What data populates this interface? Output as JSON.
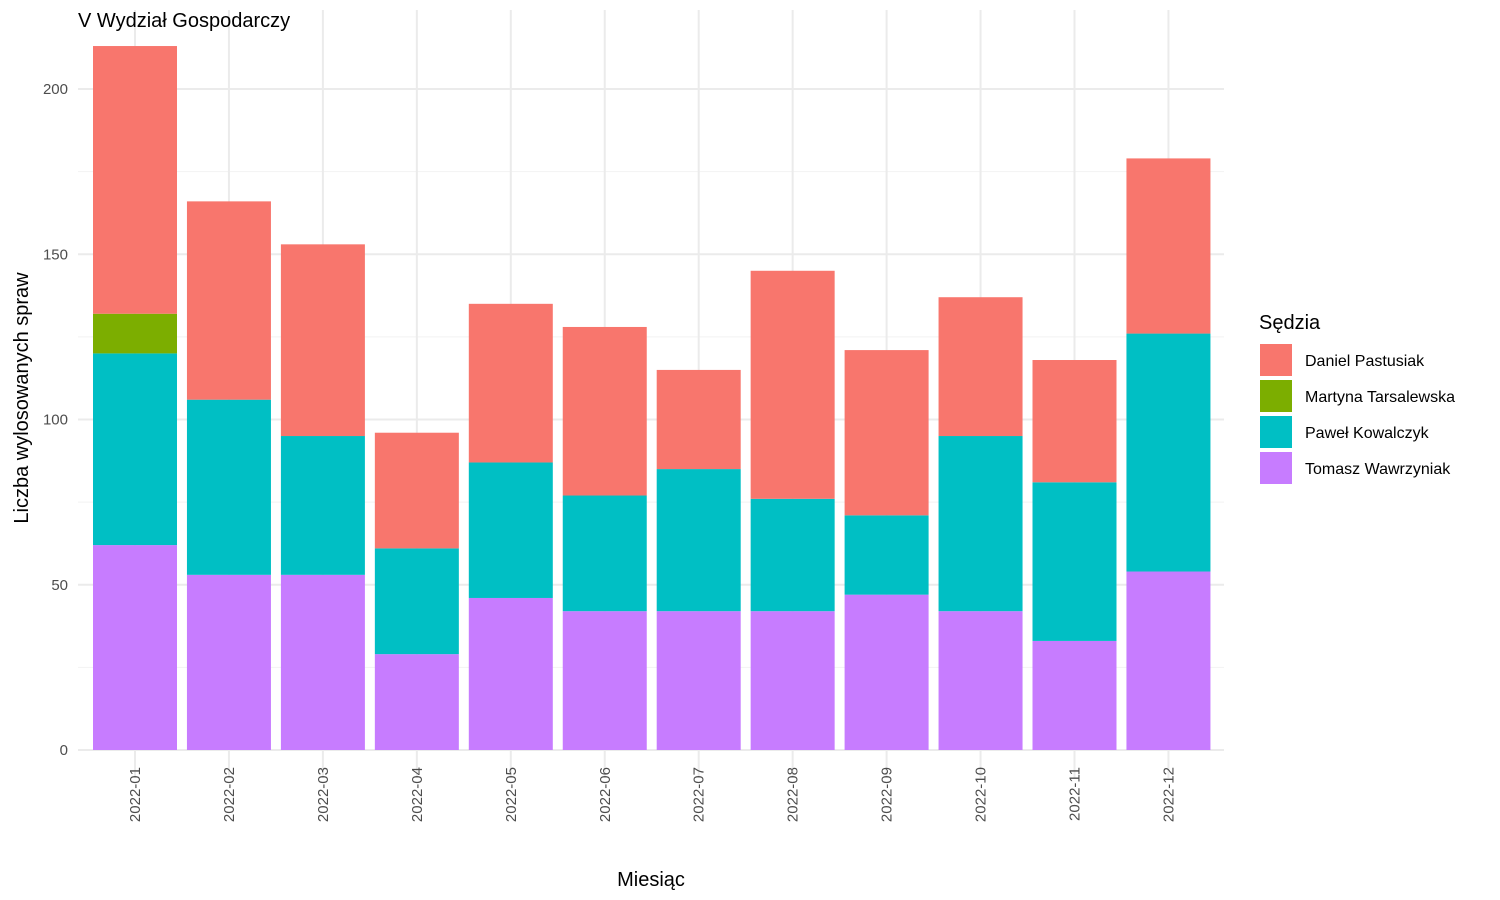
{
  "chart_data": {
    "type": "bar",
    "stacked": true,
    "title": "V Wydział Gospodarczy",
    "xlabel": "Miesiąc",
    "ylabel": "Liczba wylosowanych spraw",
    "ylim": [
      0,
      220
    ],
    "yticks": [
      0,
      50,
      100,
      150,
      200
    ],
    "grid": true,
    "legend_position": "right",
    "legend_title": "Sędzia",
    "categories": [
      "2022-01",
      "2022-02",
      "2022-03",
      "2022-04",
      "2022-05",
      "2022-06",
      "2022-07",
      "2022-08",
      "2022-09",
      "2022-10",
      "2022-11",
      "2022-12"
    ],
    "series": [
      {
        "name": "Daniel Pastusiak",
        "color": "#F8766D",
        "values": [
          81,
          60,
          58,
          35,
          48,
          51,
          30,
          69,
          50,
          42,
          37,
          53
        ]
      },
      {
        "name": "Martyna Tarsalewska",
        "color": "#7CAE00",
        "values": [
          12,
          0,
          0,
          0,
          0,
          0,
          0,
          0,
          0,
          0,
          0,
          0
        ]
      },
      {
        "name": "Paweł Kowalczyk",
        "color": "#00BFC4",
        "values": [
          58,
          53,
          42,
          32,
          41,
          35,
          43,
          34,
          24,
          53,
          48,
          72
        ]
      },
      {
        "name": "Tomasz Wawrzyniak",
        "color": "#C77CFF",
        "values": [
          62,
          53,
          53,
          29,
          46,
          42,
          42,
          42,
          47,
          42,
          33,
          54
        ]
      }
    ],
    "stack_order_bottom_to_top": [
      "Tomasz Wawrzyniak",
      "Paweł Kowalczyk",
      "Martyna Tarsalewska",
      "Daniel Pastusiak"
    ]
  }
}
